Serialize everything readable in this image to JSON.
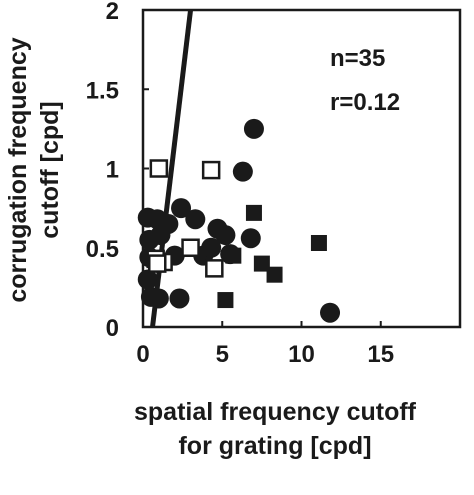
{
  "chart_data": {
    "type": "scatter",
    "xlabel_line1": "spatial frequency cutoff",
    "xlabel_line2": "for grating [cpd]",
    "ylabel_line1": "corrugation frequency",
    "ylabel_line2": "cutoff [cpd]",
    "xlim": [
      0,
      20
    ],
    "ylim": [
      0,
      2
    ],
    "xticks": [
      0,
      5,
      10,
      15
    ],
    "xtick_labels": [
      "0",
      "5",
      "10",
      "15"
    ],
    "yticks": [
      0,
      0.5,
      1,
      1.5,
      2
    ],
    "ytick_labels": [
      "0",
      "0.5",
      "1",
      "1.5",
      "2"
    ],
    "grid": false,
    "annotations": [
      "n=35",
      "r=0.12"
    ],
    "fit_line": {
      "x": [
        0.6,
        3.0
      ],
      "y": [
        0,
        2
      ]
    },
    "series": [
      {
        "marker": "filled-circle",
        "points": [
          [
            0.3,
            0.69
          ],
          [
            0.4,
            0.55
          ],
          [
            0.4,
            0.44
          ],
          [
            0.3,
            0.3
          ],
          [
            0.5,
            0.19
          ],
          [
            0.9,
            0.68
          ],
          [
            1.1,
            0.58
          ],
          [
            1.6,
            0.65
          ],
          [
            2.0,
            0.45
          ],
          [
            2.4,
            0.75
          ],
          [
            3.3,
            0.68
          ],
          [
            3.8,
            0.45
          ],
          [
            4.3,
            0.5
          ],
          [
            4.7,
            0.62
          ],
          [
            5.5,
            0.46
          ],
          [
            5.2,
            0.58
          ],
          [
            6.3,
            0.98
          ],
          [
            7.0,
            1.25
          ],
          [
            6.8,
            0.56
          ],
          [
            1.0,
            0.18
          ],
          [
            2.3,
            0.18
          ],
          [
            11.8,
            0.09
          ]
        ]
      },
      {
        "marker": "filled-square",
        "points": [
          [
            7.0,
            0.72
          ],
          [
            7.5,
            0.4
          ],
          [
            8.3,
            0.33
          ],
          [
            11.1,
            0.53
          ],
          [
            5.2,
            0.17
          ],
          [
            5.7,
            0.45
          ]
        ]
      },
      {
        "marker": "open-square",
        "points": [
          [
            1.0,
            1.0
          ],
          [
            4.3,
            0.99
          ],
          [
            1.3,
            0.41
          ],
          [
            4.5,
            0.37
          ],
          [
            3.0,
            0.5
          ],
          [
            0.8,
            0.43
          ],
          [
            0.9,
            0.4
          ]
        ]
      }
    ]
  }
}
